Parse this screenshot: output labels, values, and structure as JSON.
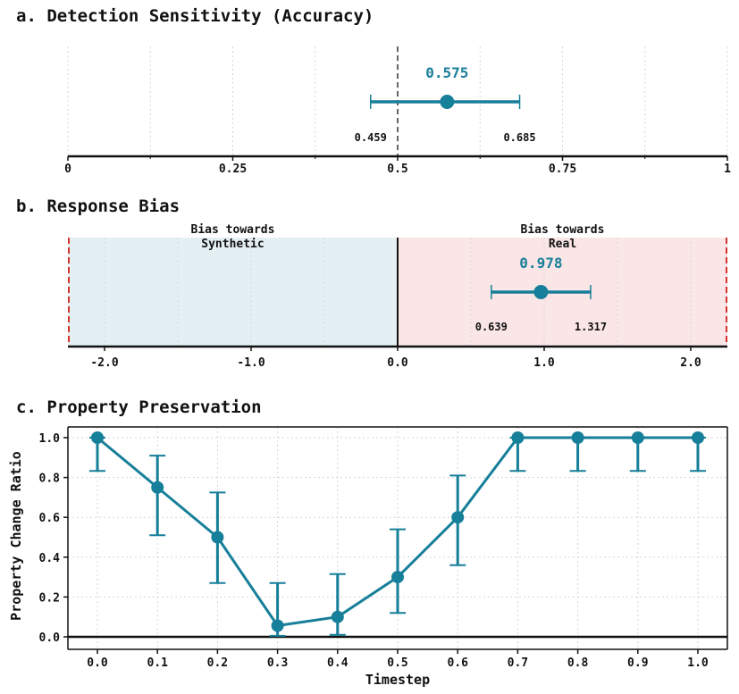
{
  "colors": {
    "accent": "#167f99",
    "synthetic_region": "#e4eff4",
    "real_region": "#fae6e6",
    "bound_line": "#d6332b",
    "chance_line": "#666666"
  },
  "chart_data": [
    {
      "panel": "a",
      "type": "scatter",
      "title": "a. Detection Sensitivity (Accuracy)",
      "xlim": [
        0,
        1
      ],
      "xticks": [
        "0",
        "0.25",
        "0.5",
        "0.75",
        "1"
      ],
      "xtick_values": [
        0,
        0.25,
        0.5,
        0.75,
        1
      ],
      "reference_line": 0.5,
      "point": {
        "value": 0.575,
        "value_label": "0.575",
        "ci_low": 0.459,
        "ci_low_label": "0.459",
        "ci_high": 0.685,
        "ci_high_label": "0.685"
      },
      "grid": true
    },
    {
      "panel": "b",
      "type": "scatter",
      "title": "b. Response Bias",
      "xlim": [
        -2.25,
        2.25
      ],
      "xticks": [
        "-2.0",
        "-1.0",
        "0.0",
        "1.0",
        "2.0"
      ],
      "xtick_values": [
        -2,
        -1,
        0,
        1,
        2
      ],
      "regions": [
        {
          "label_line1": "Bias towards",
          "label_line2": "Synthetic",
          "from": -2.25,
          "to": 0
        },
        {
          "label_line1": "Bias towards",
          "label_line2": "Real",
          "from": 0,
          "to": 2.25
        }
      ],
      "point": {
        "value": 0.978,
        "value_label": "0.978",
        "ci_low": 0.639,
        "ci_low_label": "0.639",
        "ci_high": 1.317,
        "ci_high_label": "1.317"
      },
      "grid": true
    },
    {
      "panel": "c",
      "type": "line",
      "title": "c. Property Preservation",
      "xlabel": "Timestep",
      "ylabel": "Property Change Ratio",
      "xlim": [
        -0.05,
        1.05
      ],
      "ylim": [
        -0.02,
        1.05
      ],
      "xticks": [
        "0.0",
        "0.1",
        "0.2",
        "0.3",
        "0.4",
        "0.5",
        "0.6",
        "0.7",
        "0.8",
        "0.9",
        "1.0"
      ],
      "yticks": [
        "0.0",
        "0.2",
        "0.4",
        "0.6",
        "0.8",
        "1.0"
      ],
      "ytick_values": [
        0,
        0.2,
        0.4,
        0.6,
        0.8,
        1.0
      ],
      "x": [
        0.0,
        0.1,
        0.2,
        0.3,
        0.4,
        0.5,
        0.6,
        0.7,
        0.8,
        0.9,
        1.0
      ],
      "y": [
        1.0,
        0.75,
        0.5,
        0.056,
        0.1,
        0.3,
        0.6,
        1.0,
        1.0,
        1.0,
        1.0
      ],
      "err_low": [
        0.833,
        0.51,
        0.27,
        0.005,
        0.01,
        0.12,
        0.36,
        0.833,
        0.833,
        0.833,
        0.833
      ],
      "err_high": [
        1.0,
        0.91,
        0.725,
        0.27,
        0.315,
        0.54,
        0.81,
        1.0,
        1.0,
        1.0,
        1.0
      ],
      "grid": true
    }
  ]
}
